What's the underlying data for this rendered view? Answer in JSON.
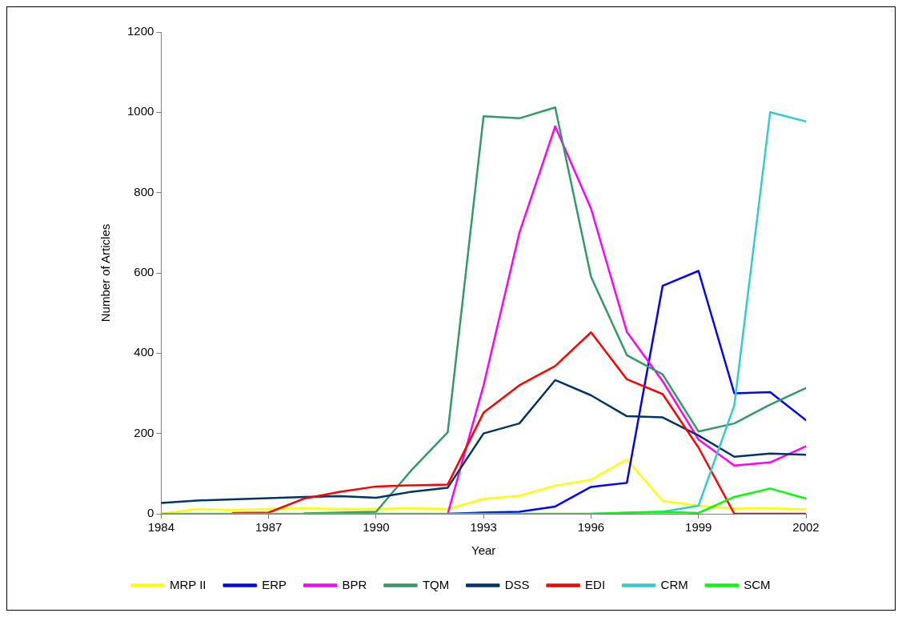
{
  "chart_data": {
    "type": "line",
    "xlabel": "Year",
    "ylabel": "Number of Articles",
    "x": [
      1984,
      1985,
      1986,
      1987,
      1988,
      1989,
      1990,
      1991,
      1992,
      1993,
      1994,
      1995,
      1996,
      1997,
      1998,
      1999,
      2000,
      2001,
      2002
    ],
    "xlim": [
      1984,
      2002
    ],
    "xticks": [
      1984,
      1987,
      1990,
      1993,
      1996,
      1999,
      2002
    ],
    "ylim": [
      0,
      1200
    ],
    "yticks": [
      0,
      200,
      400,
      600,
      800,
      1000,
      1200
    ],
    "grid": false,
    "legend": "bottom",
    "marker": "none",
    "line_style": "solid",
    "series": [
      {
        "name": "MRP II",
        "color": "#ffff00",
        "values": [
          0,
          12,
          9,
          12,
          14,
          12,
          12,
          14,
          12,
          37,
          45,
          70,
          85,
          135,
          32,
          20,
          13,
          14,
          11
        ]
      },
      {
        "name": "ERP",
        "color": "#0000ff",
        "values": [
          null,
          null,
          null,
          null,
          null,
          null,
          null,
          null,
          0,
          3,
          5,
          18,
          67,
          77,
          568,
          605,
          300,
          303,
          233
        ]
      },
      {
        "name": "BPR",
        "color": "#ff00ff",
        "values": [
          null,
          null,
          null,
          null,
          null,
          null,
          null,
          null,
          0,
          320,
          700,
          965,
          760,
          453,
          330,
          185,
          120,
          128,
          168
        ]
      },
      {
        "name": "TQM",
        "color": "#339966",
        "values": [
          null,
          null,
          null,
          null,
          1,
          3,
          5,
          110,
          203,
          990,
          985,
          1012,
          590,
          395,
          347,
          205,
          225,
          272,
          313
        ]
      },
      {
        "name": "DSS",
        "color": "#003366",
        "values": [
          27,
          33,
          36,
          39,
          42,
          44,
          40,
          55,
          65,
          200,
          225,
          333,
          295,
          243,
          240,
          195,
          142,
          150,
          147
        ]
      },
      {
        "name": "EDI",
        "color": "#ff0000",
        "values": [
          null,
          null,
          2,
          3,
          38,
          55,
          68,
          71,
          73,
          252,
          320,
          368,
          452,
          335,
          298,
          165,
          0,
          0,
          0
        ]
      },
      {
        "name": "CRM",
        "color": "#33cccc",
        "values": [
          null,
          null,
          null,
          null,
          null,
          null,
          null,
          null,
          null,
          null,
          null,
          null,
          0,
          2,
          5,
          20,
          270,
          1000,
          977
        ]
      },
      {
        "name": "SCM",
        "color": "#00ff00",
        "values": [
          0,
          0,
          0,
          0,
          0,
          0,
          0,
          0,
          0,
          0,
          0,
          0,
          0,
          3,
          5,
          2,
          42,
          63,
          38
        ]
      }
    ]
  }
}
